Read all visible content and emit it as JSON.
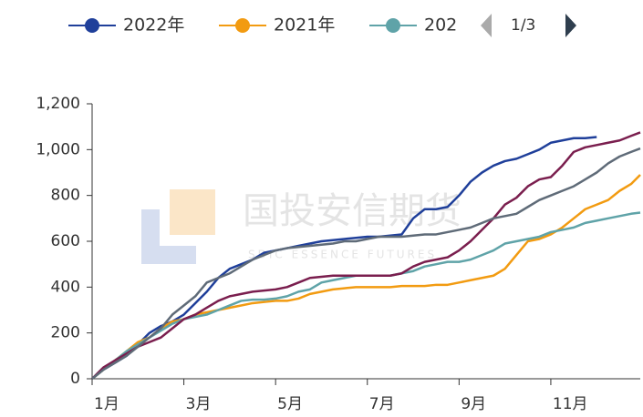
{
  "chart_data": {
    "type": "line",
    "legend_page": "1/3",
    "watermark": "国投安信期货",
    "watermark_sub": "SDIC ESSENCE FUTURES",
    "x": [
      1,
      1.25,
      1.5,
      1.75,
      2,
      2.25,
      2.5,
      2.75,
      3,
      3.25,
      3.5,
      3.75,
      4,
      4.25,
      4.5,
      4.75,
      5,
      5.25,
      5.5,
      5.75,
      6,
      6.25,
      6.5,
      6.75,
      7,
      7.25,
      7.5,
      7.75,
      8,
      8.25,
      8.5,
      8.75,
      9,
      9.25,
      9.5,
      9.75,
      10,
      10.25,
      10.5,
      10.75,
      11,
      11.25,
      11.5,
      11.75,
      12,
      12.25,
      12.5,
      12.75,
      12.95
    ],
    "xlim": [
      1,
      12.95
    ],
    "xticks": [
      {
        "value": 1,
        "label": "1月"
      },
      {
        "value": 3,
        "label": "3月"
      },
      {
        "value": 5,
        "label": "5月"
      },
      {
        "value": 7,
        "label": "7月"
      },
      {
        "value": 9,
        "label": "9月"
      },
      {
        "value": 11,
        "label": "11月"
      }
    ],
    "ylim": [
      0,
      1200
    ],
    "yticks": [
      0,
      200,
      400,
      600,
      800,
      {
        "value": 1000,
        "label": "1,000"
      },
      {
        "value": 1200,
        "label": "1,200"
      }
    ],
    "series": [
      {
        "name": "2022年",
        "color": "#1f3f9a",
        "values": [
          0,
          40,
          70,
          100,
          150,
          200,
          230,
          250,
          280,
          330,
          380,
          440,
          480,
          500,
          520,
          550,
          560,
          570,
          580,
          590,
          600,
          605,
          610,
          615,
          620,
          620,
          625,
          630,
          700,
          740,
          740,
          750,
          800,
          860,
          900,
          930,
          950,
          960,
          980,
          1000,
          1030,
          1040,
          1050,
          1050,
          1055,
          null,
          null,
          null,
          null
        ]
      },
      {
        "name": "2021年",
        "color": "#f29b11",
        "values": [
          0,
          40,
          80,
          120,
          160,
          180,
          220,
          250,
          260,
          280,
          290,
          300,
          310,
          320,
          330,
          335,
          340,
          340,
          350,
          370,
          380,
          390,
          395,
          400,
          400,
          400,
          400,
          405,
          405,
          405,
          410,
          410,
          420,
          430,
          440,
          450,
          480,
          540,
          600,
          610,
          630,
          660,
          700,
          740,
          760,
          780,
          820,
          850,
          890
        ]
      },
      {
        "name": "202",
        "color": "#5fa3a8",
        "values": [
          0,
          40,
          80,
          120,
          150,
          180,
          210,
          240,
          260,
          270,
          280,
          300,
          320,
          340,
          345,
          345,
          350,
          360,
          380,
          390,
          420,
          430,
          440,
          450,
          450,
          450,
          450,
          460,
          470,
          490,
          500,
          510,
          510,
          520,
          540,
          560,
          590,
          600,
          610,
          620,
          640,
          650,
          660,
          680,
          690,
          700,
          710,
          720,
          725
        ]
      },
      {
        "color": "#7a1e4e",
        "values": [
          0,
          50,
          80,
          110,
          140,
          160,
          180,
          220,
          260,
          280,
          310,
          340,
          360,
          370,
          380,
          385,
          390,
          400,
          420,
          440,
          445,
          450,
          450,
          450,
          450,
          450,
          450,
          460,
          490,
          510,
          520,
          530,
          560,
          600,
          650,
          700,
          760,
          790,
          840,
          870,
          880,
          930,
          990,
          1010,
          1020,
          1030,
          1040,
          1060,
          1075
        ]
      },
      {
        "color": "#5f6b78",
        "values": [
          0,
          40,
          70,
          100,
          140,
          180,
          220,
          280,
          320,
          360,
          420,
          440,
          460,
          490,
          520,
          540,
          560,
          570,
          575,
          580,
          585,
          590,
          600,
          600,
          610,
          620,
          620,
          620,
          625,
          630,
          630,
          640,
          650,
          660,
          680,
          700,
          710,
          720,
          750,
          780,
          800,
          820,
          840,
          870,
          900,
          940,
          970,
          990,
          1005
        ]
      }
    ]
  }
}
